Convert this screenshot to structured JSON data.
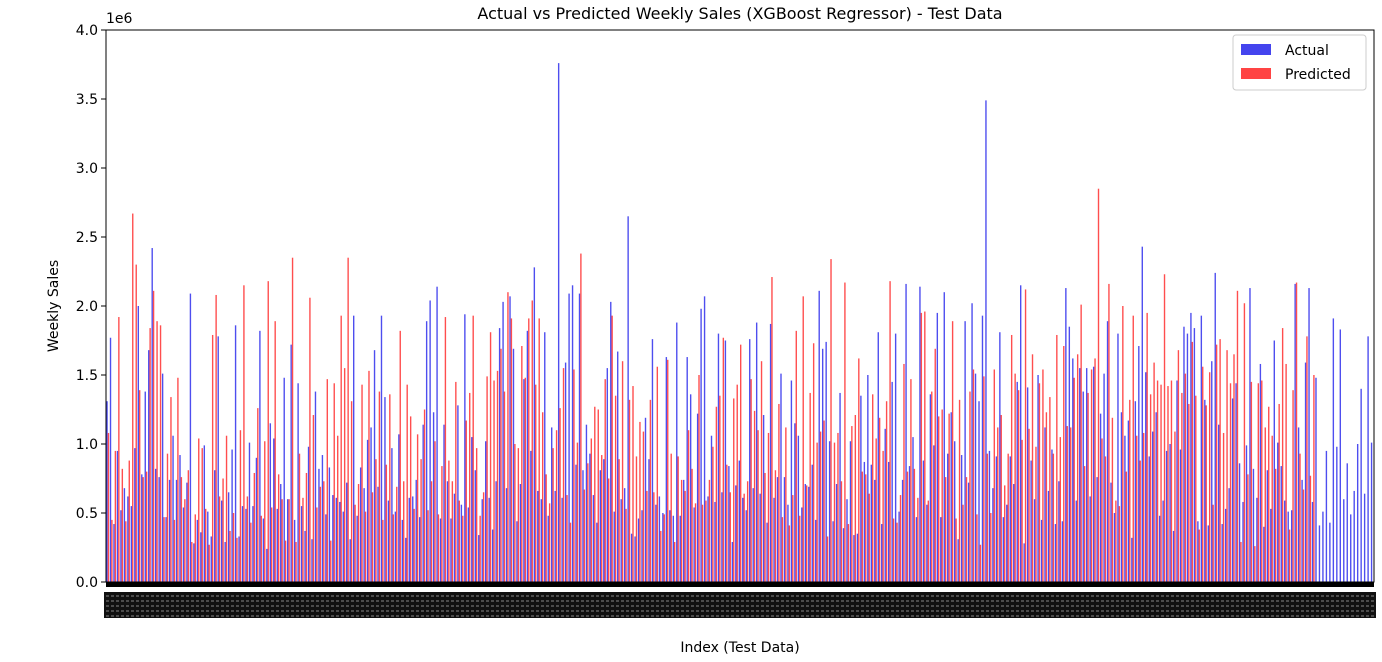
{
  "chart_data": {
    "type": "bar",
    "title": "Actual vs Predicted Weekly Sales (XGBoost Regressor) - Test Data",
    "xlabel": "Index (Test Data)",
    "ylabel": "Weekly Sales",
    "y_offset_label": "1e6",
    "ylim": [
      0,
      4.0
    ],
    "y_scale": 1000000,
    "y_ticks": [
      "0.0",
      "0.5",
      "1.0",
      "1.5",
      "2.0",
      "2.5",
      "3.0",
      "3.5",
      "4.0"
    ],
    "grid": false,
    "legend_position": "top-right",
    "series": [
      {
        "name": "Actual",
        "color": "#4444ee",
        "values": [
          1.31,
          1.77,
          0.42,
          0.95,
          0.52,
          0.68,
          0.62,
          0.55,
          0.97,
          2.0,
          0.78,
          1.38,
          1.68,
          2.42,
          0.82,
          0.76,
          1.51,
          0.47,
          0.74,
          1.06,
          0.74,
          0.92,
          0.54,
          0.72,
          2.09,
          0.28,
          0.45,
          0.36,
          0.99,
          0.51,
          0.33,
          0.81,
          1.78,
          0.59,
          0.29,
          0.65,
          0.96,
          1.86,
          0.33,
          0.55,
          0.53,
          1.01,
          0.55,
          0.9,
          1.82,
          0.46,
          0.24,
          1.15,
          1.04,
          0.53,
          0.71,
          1.48,
          0.6,
          1.72,
          0.45,
          1.44,
          0.55,
          0.37,
          0.98,
          0.31,
          1.38,
          0.82,
          0.92,
          0.49,
          0.83,
          0.63,
          0.61,
          0.58,
          0.51,
          0.72,
          0.31,
          1.93,
          0.48,
          0.83,
          0.68,
          1.03,
          1.12,
          1.68,
          0.69,
          1.93,
          1.34,
          0.59,
          0.97,
          0.51,
          1.07,
          0.45,
          0.32,
          0.61,
          0.62,
          0.74,
          0.47,
          1.14,
          1.89,
          2.04,
          1.23,
          2.14,
          0.46,
          1.14,
          0.73,
          0.46,
          0.64,
          1.28,
          0.56,
          1.94,
          0.54,
          1.05,
          0.81,
          0.34,
          0.6,
          1.02,
          0.61,
          0.38,
          0.73,
          1.84,
          2.03,
          0.68,
          2.07,
          1.69,
          0.44,
          0.71,
          1.47,
          1.82,
          0.95,
          2.28,
          0.66,
          0.6,
          1.81,
          0.48,
          1.12,
          0.66,
          3.76,
          0.61,
          1.59,
          2.09,
          2.15,
          0.85,
          2.09,
          0.81,
          1.14,
          0.93,
          0.63,
          0.43,
          0.81,
          0.89,
          1.55,
          2.03,
          0.51,
          1.67,
          0.6,
          0.68,
          2.65,
          0.35,
          0.33,
          0.46,
          0.52,
          1.19,
          0.89,
          1.76,
          0.56,
          0.62,
          0.5,
          1.63,
          0.52,
          0.48,
          1.88,
          0.48,
          0.74,
          1.63,
          1.36,
          0.54,
          1.22,
          1.98,
          2.07,
          0.62,
          1.06,
          0.58,
          1.8,
          0.65,
          1.75,
          0.84,
          0.29,
          0.7,
          0.88,
          0.61,
          0.52,
          1.76,
          0.68,
          1.88,
          0.64,
          1.21,
          0.43,
          1.87,
          0.61,
          0.76,
          1.51,
          0.76,
          0.56,
          1.46,
          1.15,
          1.06,
          0.54,
          0.71,
          0.69,
          0.85,
          0.45,
          2.11,
          1.69,
          1.74,
          1.02,
          0.44,
          0.71,
          1.37,
          0.39,
          0.6,
          1.02,
          0.34,
          0.35,
          1.35,
          0.87,
          1.5,
          0.85,
          0.74,
          1.81,
          0.42,
          1.11,
          0.87,
          1.45,
          1.8,
          0.51,
          0.74,
          2.16,
          0.84,
          1.05,
          0.47,
          2.14,
          0.88,
          0.56,
          1.36,
          0.99,
          1.95,
          0.47,
          2.1,
          0.93,
          1.23,
          1.02,
          0.31,
          0.92,
          1.89,
          0.72,
          2.02,
          1.51,
          1.31,
          1.93,
          3.49,
          0.95,
          0.68,
          0.91,
          1.81,
          0.47,
          0.56,
          0.91,
          0.71,
          1.45,
          2.15,
          0.28,
          1.41,
          0.88,
          0.6,
          1.5,
          0.45,
          1.12,
          0.66,
          0.96,
          0.42,
          0.73,
          0.44,
          2.13,
          1.85,
          1.62,
          0.59,
          1.55,
          1.38,
          1.55,
          0.62,
          1.56,
          0.76,
          1.22,
          1.51,
          1.89,
          0.72,
          0.5,
          1.8,
          1.23,
          1.06,
          1.17,
          0.32,
          1.31,
          1.71,
          2.43,
          1.52,
          0.91,
          1.09,
          1.23,
          0.48,
          0.59,
          0.95,
          1.0,
          0.37,
          1.46,
          0.96,
          1.85,
          1.8,
          1.95,
          1.84,
          0.44,
          1.93,
          1.32,
          0.41,
          1.6,
          2.24,
          1.14,
          0.42,
          0.53,
          0.68,
          1.33,
          1.44,
          0.86,
          0.58,
          0.99,
          2.13,
          0.82,
          0.61,
          1.58,
          0.4,
          0.81,
          0.53,
          1.75,
          1.01,
          0.84,
          0.59,
          0.51,
          0.52,
          2.16,
          1.12,
          0.74,
          1.59,
          2.13,
          0.58,
          1.48,
          0.41,
          0.51,
          0.95,
          0.43,
          1.91,
          0.98,
          1.83,
          0.6,
          0.86,
          0.49,
          0.66,
          1.0,
          1.4,
          0.64,
          1.78,
          1.01
        ],
        "note_truncated": false
      },
      {
        "name": "Predicted",
        "color": "#ff4444",
        "values": [
          1.08,
          0.45,
          0.95,
          1.92,
          0.82,
          0.44,
          0.88,
          2.67,
          2.3,
          1.39,
          0.76,
          0.8,
          1.84,
          2.11,
          1.89,
          1.86,
          0.47,
          0.93,
          1.34,
          0.45,
          1.48,
          0.76,
          0.6,
          0.81,
          0.29,
          0.49,
          1.04,
          0.97,
          0.53,
          0.27,
          1.79,
          2.08,
          0.62,
          0.75,
          1.06,
          0.37,
          0.5,
          0.32,
          1.1,
          2.15,
          0.62,
          0.43,
          0.79,
          1.26,
          0.48,
          1.02,
          2.18,
          0.54,
          1.89,
          0.78,
          0.6,
          0.3,
          0.6,
          2.35,
          0.29,
          0.93,
          0.61,
          0.79,
          2.06,
          1.21,
          0.54,
          0.69,
          0.73,
          1.47,
          0.3,
          1.44,
          1.06,
          1.93,
          1.55,
          2.35,
          1.31,
          0.56,
          0.71,
          1.43,
          0.51,
          1.53,
          0.65,
          0.89,
          1.38,
          0.45,
          0.85,
          1.36,
          0.49,
          0.69,
          1.82,
          0.73,
          1.43,
          1.2,
          0.53,
          1.07,
          0.89,
          1.25,
          0.52,
          0.73,
          1.02,
          0.49,
          0.84,
          1.92,
          0.88,
          0.73,
          1.45,
          0.59,
          0.48,
          1.17,
          1.37,
          1.93,
          0.97,
          0.48,
          0.65,
          1.49,
          1.81,
          1.46,
          1.53,
          1.69,
          1.38,
          2.1,
          1.91,
          1.0,
          0.97,
          1.71,
          1.48,
          1.91,
          2.04,
          1.43,
          1.91,
          1.23,
          0.78,
          0.57,
          0.97,
          1.1,
          1.26,
          1.55,
          0.63,
          0.43,
          1.54,
          1.01,
          2.38,
          0.67,
          0.86,
          1.04,
          1.27,
          1.25,
          0.92,
          1.47,
          0.75,
          1.93,
          1.35,
          0.89,
          1.6,
          0.53,
          1.32,
          1.42,
          0.91,
          1.16,
          1.09,
          0.66,
          1.32,
          0.65,
          1.56,
          0.37,
          0.49,
          1.61,
          0.93,
          0.29,
          0.91,
          0.74,
          0.66,
          1.1,
          0.82,
          0.57,
          1.5,
          0.56,
          0.59,
          0.74,
          0.98,
          1.27,
          1.35,
          1.77,
          0.85,
          0.65,
          1.33,
          1.43,
          1.72,
          0.64,
          0.73,
          1.47,
          1.24,
          1.1,
          1.6,
          0.79,
          1.08,
          2.21,
          0.81,
          1.29,
          0.47,
          1.12,
          0.41,
          0.63,
          1.82,
          0.48,
          2.07,
          0.7,
          1.37,
          1.73,
          1.01,
          1.09,
          1.17,
          0.33,
          2.34,
          1.01,
          1.08,
          0.73,
          2.17,
          0.42,
          1.13,
          1.21,
          1.62,
          0.8,
          0.78,
          0.64,
          1.36,
          1.04,
          1.19,
          0.95,
          1.31,
          2.18,
          0.46,
          0.43,
          0.63,
          1.58,
          0.8,
          1.47,
          0.82,
          0.61,
          1.95,
          1.96,
          0.59,
          1.38,
          1.69,
          1.2,
          1.25,
          0.76,
          1.22,
          1.89,
          0.46,
          1.32,
          0.56,
          0.76,
          1.38,
          1.54,
          0.49,
          0.27,
          1.49,
          0.93,
          0.5,
          1.54,
          1.12,
          1.21,
          0.7,
          0.93,
          1.79,
          1.51,
          1.39,
          1.03,
          2.12,
          1.11,
          1.65,
          0.98,
          1.44,
          1.54,
          1.23,
          1.34,
          0.93,
          1.79,
          1.05,
          1.71,
          1.13,
          1.12,
          1.48,
          1.65,
          2.01,
          0.84,
          1.37,
          1.54,
          1.62,
          2.85,
          1.04,
          0.91,
          2.16,
          1.19,
          0.59,
          0.55,
          2.0,
          0.8,
          1.32,
          1.93,
          1.06,
          0.88,
          1.08,
          1.95,
          1.36,
          1.59,
          1.46,
          1.43,
          2.23,
          1.42,
          1.46,
          1.09,
          1.68,
          1.37,
          1.51,
          1.29,
          1.74,
          1.35,
          0.38,
          1.56,
          1.28,
          1.52,
          0.56,
          1.72,
          1.76,
          1.08,
          1.68,
          1.44,
          1.65,
          2.11,
          0.29,
          2.02,
          0.78,
          1.45,
          0.26,
          1.44,
          1.46,
          1.12,
          1.27,
          1.06,
          0.82,
          1.29,
          1.84,
          1.58,
          0.38,
          1.39,
          2.17,
          0.93,
          0.67,
          1.78,
          0.77,
          1.5
        ]
      }
    ]
  }
}
